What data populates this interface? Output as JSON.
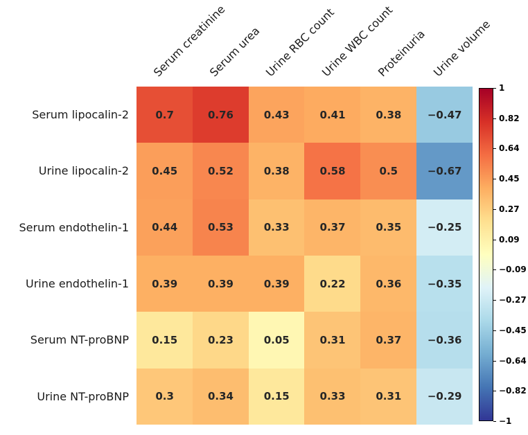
{
  "chart_data": {
    "type": "heatmap",
    "title": "",
    "rows": [
      "Serum lipocalin-2",
      "Urine lipocalin-2",
      "Serum endothelin-1",
      "Urine endothelin-1",
      "Serum NT-proBNP",
      "Urine NT-proBNP"
    ],
    "columns": [
      "Serum creatinine",
      "Serum urea",
      "Urine RBC count",
      "Urine WBC count",
      "Proteinuria",
      "Urine volume"
    ],
    "values": [
      [
        0.7,
        0.76,
        0.43,
        0.41,
        0.38,
        -0.47
      ],
      [
        0.45,
        0.52,
        0.38,
        0.58,
        0.5,
        -0.67
      ],
      [
        0.44,
        0.53,
        0.33,
        0.37,
        0.35,
        -0.25
      ],
      [
        0.39,
        0.39,
        0.39,
        0.22,
        0.36,
        -0.35
      ],
      [
        0.15,
        0.23,
        0.05,
        0.31,
        0.37,
        -0.36
      ],
      [
        0.3,
        0.34,
        0.15,
        0.33,
        0.31,
        -0.29
      ]
    ],
    "vmin": -1,
    "vmax": 1,
    "grid": false,
    "colormap": "RdYlBu_r",
    "colormap_colors_low_to_high": [
      "#313695",
      "#4575b4",
      "#74add1",
      "#abd9e9",
      "#e0f3f8",
      "#ffffbf",
      "#fee090",
      "#fdae61",
      "#f46d43",
      "#d73027",
      "#a50026"
    ],
    "annotation_color": "#262626",
    "background_color": "#ffffff",
    "colorbar": {
      "position": "right",
      "tick_labels": [
        "1",
        "0.82",
        "0.64",
        "0.45",
        "0.27",
        "0.09",
        "−0.09",
        "−0.27",
        "−0.45",
        "−0.64",
        "−0.82",
        "−1"
      ]
    }
  }
}
